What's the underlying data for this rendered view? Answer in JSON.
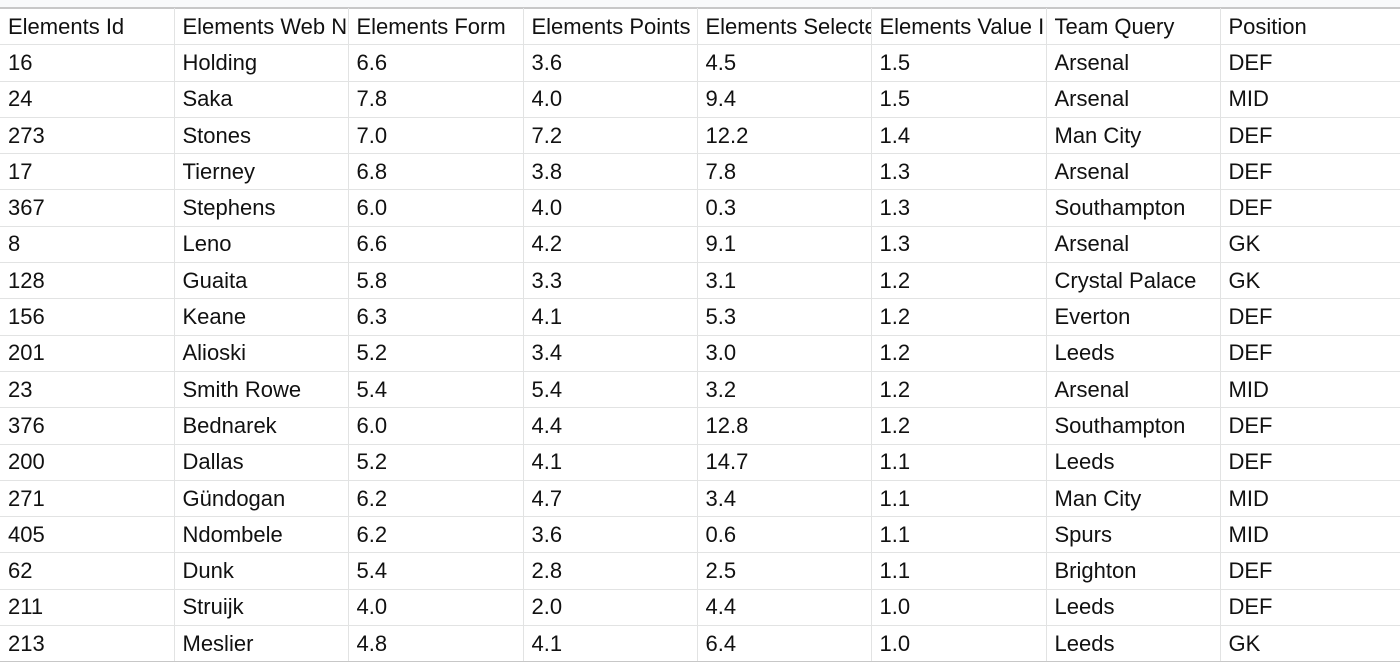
{
  "columns": [
    "Elements Id",
    "Elements Web N",
    "Elements Form",
    "Elements Points",
    "Elements Selecte",
    "Elements Value I",
    "Team Query",
    "Position"
  ],
  "rows": [
    [
      "16",
      "Holding",
      "6.6",
      "3.6",
      "4.5",
      "1.5",
      "Arsenal",
      "DEF"
    ],
    [
      "24",
      "Saka",
      "7.8",
      "4.0",
      "9.4",
      "1.5",
      "Arsenal",
      "MID"
    ],
    [
      "273",
      "Stones",
      "7.0",
      "7.2",
      "12.2",
      "1.4",
      "Man City",
      "DEF"
    ],
    [
      "17",
      "Tierney",
      "6.8",
      "3.8",
      "7.8",
      "1.3",
      "Arsenal",
      "DEF"
    ],
    [
      "367",
      "Stephens",
      "6.0",
      "4.0",
      "0.3",
      "1.3",
      "Southampton",
      "DEF"
    ],
    [
      "8",
      "Leno",
      "6.6",
      "4.2",
      "9.1",
      "1.3",
      "Arsenal",
      "GK"
    ],
    [
      "128",
      "Guaita",
      "5.8",
      "3.3",
      "3.1",
      "1.2",
      "Crystal Palace",
      "GK"
    ],
    [
      "156",
      "Keane",
      "6.3",
      "4.1",
      "5.3",
      "1.2",
      "Everton",
      "DEF"
    ],
    [
      "201",
      "Alioski",
      "5.2",
      "3.4",
      "3.0",
      "1.2",
      "Leeds",
      "DEF"
    ],
    [
      "23",
      "Smith Rowe",
      "5.4",
      "5.4",
      "3.2",
      "1.2",
      "Arsenal",
      "MID"
    ],
    [
      "376",
      "Bednarek",
      "6.0",
      "4.4",
      "12.8",
      "1.2",
      "Southampton",
      "DEF"
    ],
    [
      "200",
      "Dallas",
      "5.2",
      "4.1",
      "14.7",
      "1.1",
      "Leeds",
      "DEF"
    ],
    [
      "271",
      "Gündogan",
      "6.2",
      "4.7",
      "3.4",
      "1.1",
      "Man City",
      "MID"
    ],
    [
      "405",
      "Ndombele",
      "6.2",
      "3.6",
      "0.6",
      "1.1",
      "Spurs",
      "MID"
    ],
    [
      "62",
      "Dunk",
      "5.4",
      "2.8",
      "2.5",
      "1.1",
      "Brighton",
      "DEF"
    ],
    [
      "211",
      "Struijk",
      "4.0",
      "2.0",
      "4.4",
      "1.0",
      "Leeds",
      "DEF"
    ],
    [
      "213",
      "Meslier",
      "4.8",
      "4.1",
      "6.4",
      "1.0",
      "Leeds",
      "GK"
    ]
  ],
  "colors": {
    "grid_line": "#e2e3e3",
    "header_strip": "#f8f9fa",
    "text": "#111111"
  }
}
